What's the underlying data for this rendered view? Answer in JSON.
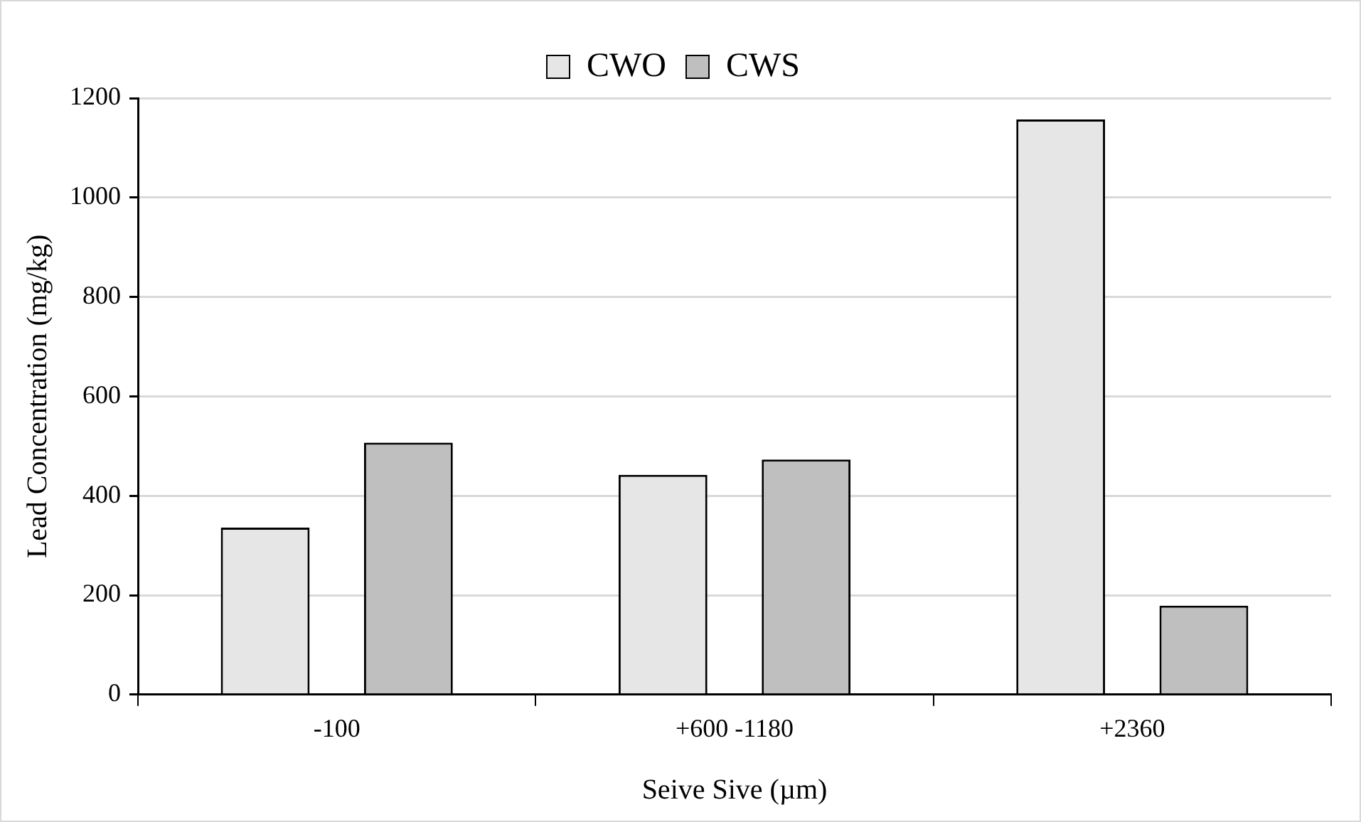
{
  "chart_data": {
    "type": "bar",
    "xlabel": "Seive Sive (µm)",
    "ylabel": "Lead Concentration (mg/kg)",
    "categories": [
      "-100",
      "+600 -1180",
      "+2360"
    ],
    "series": [
      {
        "name": "CWO",
        "color": "#e6e6e6",
        "values": [
          336,
          442,
          1157
        ]
      },
      {
        "name": "CWS",
        "color": "#bfbfbf",
        "values": [
          507,
          473,
          179
        ]
      }
    ],
    "ylim": [
      0,
      1200
    ],
    "yticks": [
      0,
      200,
      400,
      600,
      800,
      1000,
      1200
    ],
    "grid": "y",
    "legend": "top"
  }
}
